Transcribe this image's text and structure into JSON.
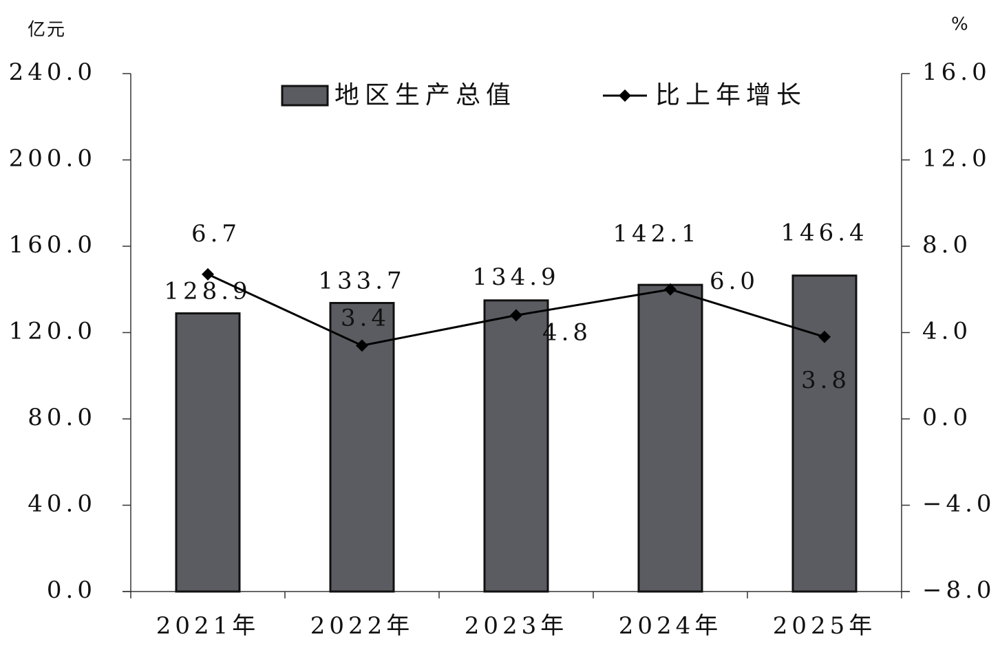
{
  "chart_data": {
    "type": "bar-line",
    "y_label": "亿元",
    "y2_label": "%",
    "categories": [
      "2021年",
      "2022年",
      "2023年",
      "2024年",
      "2025年"
    ],
    "series": [
      {
        "name": "地区生产总值",
        "type": "bar",
        "color": "#5b5c61",
        "values": [
          128.9,
          133.7,
          134.9,
          142.1,
          146.4
        ]
      },
      {
        "name": "比上年增长",
        "type": "line",
        "axis": "y2",
        "color": "#000000",
        "values": [
          6.7,
          3.4,
          4.8,
          6.0,
          3.8
        ],
        "value_labels": [
          "6.7",
          "3.4",
          "4.8",
          "6.0",
          "3.8"
        ]
      }
    ],
    "ylim": [
      0,
      240
    ],
    "yticks": [
      {
        "value": 0,
        "label": "0.0"
      },
      {
        "value": 40,
        "label": "40.0"
      },
      {
        "value": 80,
        "label": "80.0"
      },
      {
        "value": 120,
        "label": "120.0"
      },
      {
        "value": 160,
        "label": "160.0"
      },
      {
        "value": 200,
        "label": "200.0"
      },
      {
        "value": 240,
        "label": "240.0"
      }
    ],
    "y2lim": [
      -8,
      16
    ],
    "y2ticks": [
      {
        "value": -8,
        "label": "−8.0"
      },
      {
        "value": -4,
        "label": "−4.0"
      },
      {
        "value": 0,
        "label": "0.0"
      },
      {
        "value": 4,
        "label": "4.0"
      },
      {
        "value": 8,
        "label": "8.0"
      },
      {
        "value": 12,
        "label": "12.0"
      },
      {
        "value": 16,
        "label": "16.0"
      }
    ],
    "legend": "top"
  }
}
